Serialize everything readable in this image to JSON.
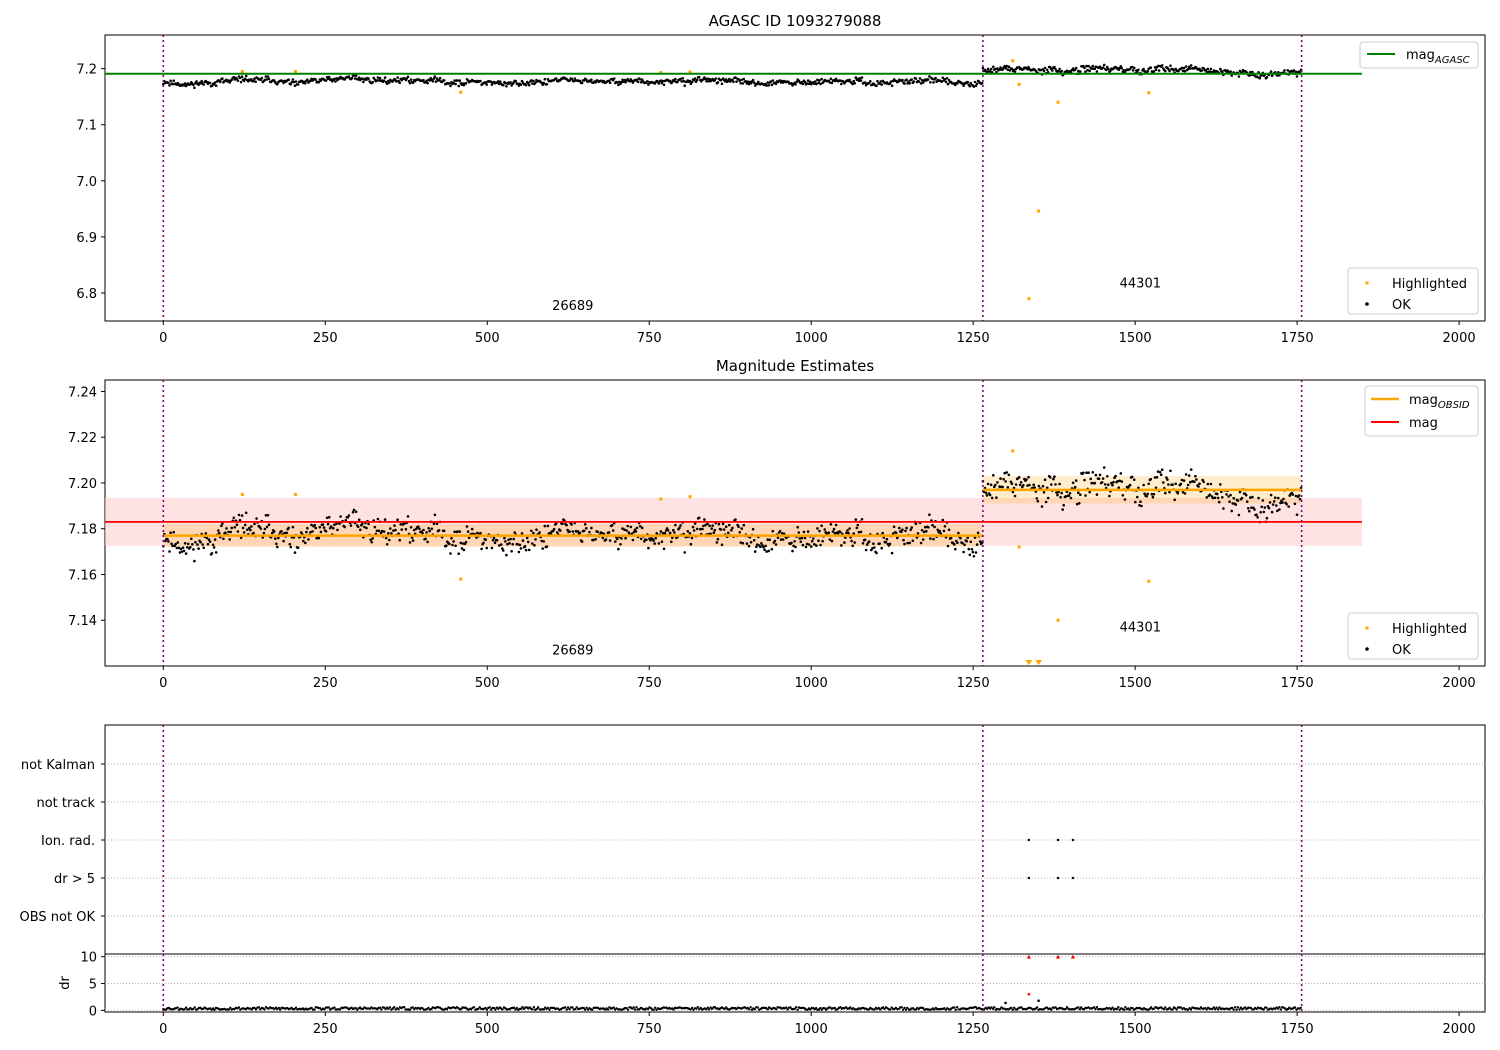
{
  "chart_data": [
    {
      "type": "scatter",
      "title": "AGASC ID 1093279088",
      "xlim": [
        -90,
        2040
      ],
      "ylim": [
        6.75,
        7.26
      ],
      "xticks": [
        0,
        250,
        500,
        750,
        1000,
        1250,
        1500,
        1750,
        2000
      ],
      "yticks": [
        6.8,
        6.9,
        7.0,
        7.1,
        7.2
      ],
      "ytick_labels": [
        "6.8",
        "6.9",
        "7.0",
        "7.1",
        "7.2"
      ],
      "obs_boundaries": [
        0,
        1265,
        1757
      ],
      "obs_labels": [
        {
          "text": "26689",
          "x": 632,
          "y": 6.77
        },
        {
          "text": "44301",
          "x": 1508,
          "y": 6.81
        }
      ],
      "lines": [
        {
          "name": "mag_AGASC",
          "color": "#008000",
          "y": 7.191,
          "x": [
            -90,
            1850
          ]
        }
      ],
      "segments": [
        {
          "x0": 0,
          "x1": 1265,
          "mean": 7.177,
          "amp": 0.009,
          "seed": 11
        },
        {
          "x0": 1265,
          "x1": 1757,
          "mean": 7.197,
          "amp": 0.01,
          "seed": 29
        }
      ],
      "highlighted": [
        {
          "x": 122,
          "y": 7.195
        },
        {
          "x": 204,
          "y": 7.195
        },
        {
          "x": 459,
          "y": 7.158
        },
        {
          "x": 768,
          "y": 7.193
        },
        {
          "x": 813,
          "y": 7.194
        },
        {
          "x": 1311,
          "y": 7.214
        },
        {
          "x": 1321,
          "y": 7.172
        },
        {
          "x": 1336,
          "y": 6.79
        },
        {
          "x": 1351,
          "y": 6.946
        },
        {
          "x": 1381,
          "y": 7.14
        },
        {
          "x": 1521,
          "y": 7.157
        }
      ],
      "legend_upper": [
        {
          "label": "mag",
          "sub": "AGASC",
          "color": "#008000"
        }
      ],
      "legend_lower": [
        {
          "label": "Highlighted",
          "color": "#ffa500"
        },
        {
          "label": "OK",
          "color": "#000000"
        }
      ]
    },
    {
      "type": "scatter",
      "title": "Magnitude Estimates",
      "xlim": [
        -90,
        2040
      ],
      "ylim": [
        7.12,
        7.245
      ],
      "xticks": [
        0,
        250,
        500,
        750,
        1000,
        1250,
        1500,
        1750,
        2000
      ],
      "yticks": [
        7.14,
        7.16,
        7.18,
        7.2,
        7.22,
        7.24
      ],
      "ytick_labels": [
        "7.14",
        "7.16",
        "7.18",
        "7.20",
        "7.22",
        "7.24"
      ],
      "obs_boundaries": [
        0,
        1265,
        1757
      ],
      "obs_labels": [
        {
          "text": "26689",
          "x": 632,
          "y": 7.125
        },
        {
          "text": "44301",
          "x": 1508,
          "y": 7.135
        }
      ],
      "mag": {
        "value": 7.183,
        "band": [
          7.1725,
          7.1935
        ],
        "x": [
          -90,
          1850
        ],
        "color": "#ff0000",
        "band_color": "#ffcccc"
      },
      "obsid_mags": [
        {
          "x0": 0,
          "x1": 1265,
          "value": 7.177,
          "band": [
            7.172,
            7.182
          ],
          "color": "#ffa500"
        },
        {
          "x0": 1265,
          "x1": 1757,
          "value": 7.197,
          "band": [
            7.191,
            7.203
          ],
          "color": "#ffa500"
        }
      ],
      "segments": [
        {
          "x0": 0,
          "x1": 1265,
          "mean": 7.177,
          "amp": 0.009,
          "seed": 11
        },
        {
          "x0": 1265,
          "x1": 1757,
          "mean": 7.197,
          "amp": 0.01,
          "seed": 29
        }
      ],
      "highlighted": [
        {
          "x": 122,
          "y": 7.195
        },
        {
          "x": 204,
          "y": 7.195
        },
        {
          "x": 459,
          "y": 7.158
        },
        {
          "x": 768,
          "y": 7.193
        },
        {
          "x": 813,
          "y": 7.194
        },
        {
          "x": 1311,
          "y": 7.214
        },
        {
          "x": 1321,
          "y": 7.172
        },
        {
          "x": 1381,
          "y": 7.14
        },
        {
          "x": 1521,
          "y": 7.157
        }
      ],
      "off_scale_markers": [
        {
          "x": 1336
        },
        {
          "x": 1351
        }
      ],
      "legend_upper": [
        {
          "label": "mag",
          "sub": "OBSID",
          "color": "#ffa500"
        },
        {
          "label": "mag",
          "sub": "",
          "color": "#ff0000"
        }
      ],
      "legend_lower": [
        {
          "label": "Highlighted",
          "color": "#ffa500"
        },
        {
          "label": "OK",
          "color": "#000000"
        }
      ]
    },
    {
      "type": "scatter",
      "title": "",
      "xlim": [
        -90,
        2040
      ],
      "flag_rows": [
        "not Kalman",
        "not track",
        "Ion. rad.",
        "dr > 5",
        "OBS not OK"
      ],
      "flag_points": {
        "Ion. rad.": [
          1336,
          1381,
          1404
        ],
        "dr > 5": [
          1336,
          1381,
          1404
        ]
      },
      "obs_boundaries": [
        0,
        1265,
        1757
      ]
    },
    {
      "type": "scatter",
      "title": "",
      "ylabel": "dr",
      "xlim": [
        -90,
        2040
      ],
      "ylim": [
        -0.3,
        10.5
      ],
      "xticks": [
        0,
        250,
        500,
        750,
        1000,
        1250,
        1500,
        1750,
        2000
      ],
      "yticks": [
        0,
        5,
        10
      ],
      "obs_boundaries": [
        0,
        1265,
        1757
      ],
      "dr_baseline": {
        "mean": 0.35,
        "amp": 0.25,
        "seed": 53
      },
      "dr_outliers": [
        {
          "x": 1336,
          "y": 3.0,
          "color": "#ff0000"
        },
        {
          "x": 1351,
          "y": 1.8,
          "color": "#000000"
        },
        {
          "x": 1300,
          "y": 1.4,
          "color": "#000000"
        }
      ],
      "dr_clipped": [
        {
          "x": 1336,
          "y": 10,
          "color": "#ff0000"
        },
        {
          "x": 1381,
          "y": 10,
          "color": "#ff0000"
        },
        {
          "x": 1404,
          "y": 10,
          "color": "#ff0000"
        }
      ]
    }
  ]
}
